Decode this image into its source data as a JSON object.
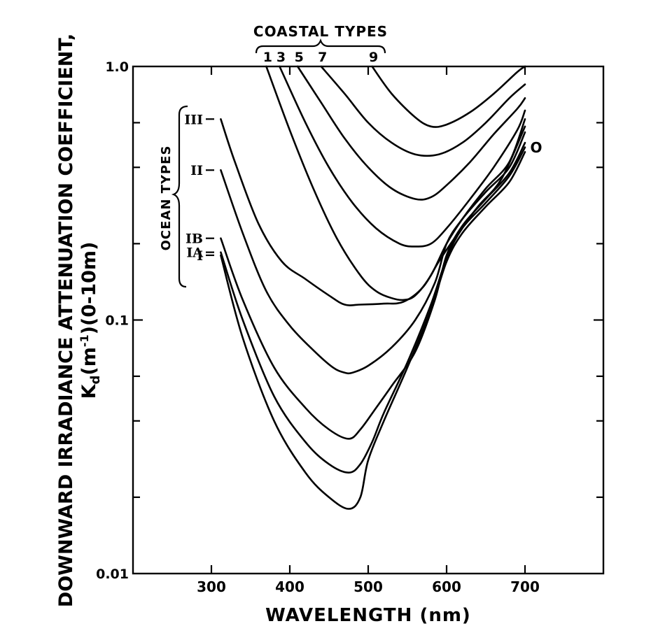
{
  "chart_data": {
    "type": "line",
    "title": "",
    "xlabel": "WAVELENGTH (nm)",
    "ylabel_line1": "DOWNWARD IRRADIANCE ATTENUATION COEFFICIENT,",
    "ylabel_line2": "K",
    "ylabel_sub": "d",
    "ylabel_rest": "(m",
    "ylabel_sup": "-1",
    "ylabel_tail": ")(0-10m)",
    "xlim": [
      200,
      800
    ],
    "ylim": [
      0.01,
      1.0
    ],
    "yscale": "log",
    "x_ticks": [
      300,
      400,
      500,
      600,
      700
    ],
    "x_tick_labels": [
      "300",
      "400",
      "500",
      "600",
      "700"
    ],
    "y_tick_labels": [
      {
        "value": 1.0,
        "label": "1.0"
      },
      {
        "value": 0.1,
        "label": "0.1"
      },
      {
        "value": 0.01,
        "label": "0.01"
      }
    ],
    "y_minor_ticks": [
      0.02,
      0.04,
      0.06,
      0.2,
      0.4,
      0.6
    ],
    "ocean_group_label": "OCEAN TYPES",
    "coastal_group_label": "COASTAL TYPES",
    "end_marker_label": "O",
    "series": [
      {
        "name": "I",
        "group": "ocean",
        "x": [
          312,
          340,
          380,
          420,
          450,
          475,
          490,
          500,
          520,
          550,
          580,
          600,
          620,
          650,
          680,
          700
        ],
        "y": [
          0.18,
          0.085,
          0.04,
          0.025,
          0.02,
          0.018,
          0.02,
          0.028,
          0.04,
          0.065,
          0.11,
          0.17,
          0.22,
          0.28,
          0.35,
          0.46
        ]
      },
      {
        "name": "IA",
        "group": "ocean",
        "x": [
          312,
          340,
          380,
          420,
          450,
          475,
          490,
          505,
          520,
          550,
          580,
          600,
          620,
          650,
          680,
          700
        ],
        "y": [
          0.185,
          0.1,
          0.05,
          0.033,
          0.027,
          0.025,
          0.027,
          0.033,
          0.043,
          0.068,
          0.115,
          0.175,
          0.23,
          0.29,
          0.37,
          0.48
        ]
      },
      {
        "name": "IB",
        "group": "ocean",
        "x": [
          312,
          340,
          380,
          420,
          450,
          475,
          490,
          510,
          530,
          560,
          585,
          600,
          620,
          650,
          680,
          700
        ],
        "y": [
          0.21,
          0.12,
          0.065,
          0.045,
          0.037,
          0.034,
          0.037,
          0.045,
          0.055,
          0.075,
          0.12,
          0.18,
          0.235,
          0.3,
          0.38,
          0.5
        ]
      },
      {
        "name": "II",
        "group": "ocean",
        "x": [
          312,
          340,
          370,
          400,
          430,
          455,
          470,
          480,
          500,
          530,
          560,
          585,
          600,
          620,
          650,
          680,
          700
        ],
        "y": [
          0.39,
          0.22,
          0.13,
          0.095,
          0.076,
          0.065,
          0.062,
          0.062,
          0.066,
          0.078,
          0.1,
          0.14,
          0.2,
          0.25,
          0.32,
          0.4,
          0.55
        ]
      },
      {
        "name": "III",
        "group": "ocean",
        "x": [
          312,
          330,
          360,
          390,
          420,
          450,
          470,
          490,
          520,
          545,
          570,
          590,
          610,
          640,
          670,
          700
        ],
        "y": [
          0.62,
          0.42,
          0.24,
          0.17,
          0.145,
          0.125,
          0.115,
          0.115,
          0.116,
          0.118,
          0.135,
          0.17,
          0.21,
          0.28,
          0.36,
          0.58
        ]
      },
      {
        "name": "1",
        "group": "coastal",
        "x": [
          370,
          400,
          430,
          460,
          490,
          510,
          530,
          545,
          560,
          580,
          600,
          620,
          650,
          680,
          700
        ],
        "y": [
          1.0,
          0.56,
          0.33,
          0.21,
          0.15,
          0.13,
          0.122,
          0.12,
          0.125,
          0.15,
          0.2,
          0.25,
          0.33,
          0.42,
          0.62
        ]
      },
      {
        "name": "3",
        "group": "coastal",
        "x": [
          387,
          420,
          450,
          480,
          510,
          540,
          560,
          580,
          600,
          630,
          660,
          690,
          700
        ],
        "y": [
          1.0,
          0.6,
          0.4,
          0.29,
          0.23,
          0.2,
          0.195,
          0.2,
          0.23,
          0.3,
          0.4,
          0.56,
          0.67
        ]
      },
      {
        "name": "5",
        "group": "coastal",
        "x": [
          410,
          440,
          470,
          500,
          530,
          560,
          580,
          600,
          630,
          660,
          690,
          700
        ],
        "y": [
          1.0,
          0.72,
          0.52,
          0.4,
          0.33,
          0.3,
          0.305,
          0.34,
          0.42,
          0.54,
          0.68,
          0.75
        ]
      },
      {
        "name": "7",
        "group": "coastal",
        "x": [
          440,
          470,
          500,
          530,
          560,
          590,
          620,
          650,
          680,
          700
        ],
        "y": [
          1.0,
          0.78,
          0.6,
          0.5,
          0.45,
          0.45,
          0.5,
          0.6,
          0.75,
          0.85
        ]
      },
      {
        "name": "9",
        "group": "coastal",
        "x": [
          505,
          530,
          560,
          580,
          600,
          630,
          660,
          690,
          700
        ],
        "y": [
          1.0,
          0.78,
          0.63,
          0.58,
          0.59,
          0.66,
          0.78,
          0.95,
          1.0
        ]
      }
    ]
  }
}
